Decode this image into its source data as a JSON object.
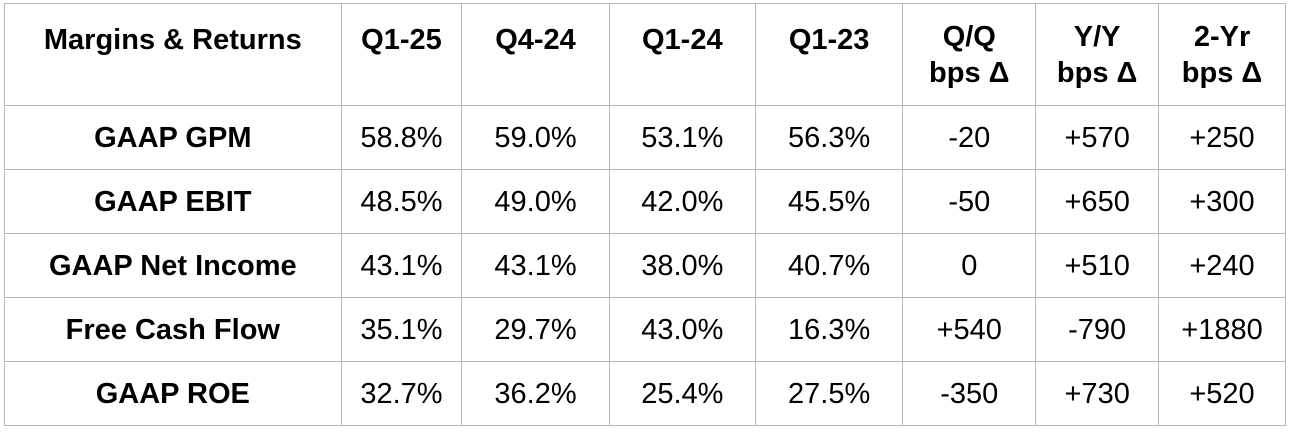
{
  "table": {
    "header": {
      "corner": "Margins & Returns",
      "periods": [
        "Q1-25",
        "Q4-24",
        "Q1-24",
        "Q1-23"
      ],
      "deltas": [
        {
          "line1": "Q/Q",
          "line2": "bps Δ"
        },
        {
          "line1": "Y/Y",
          "line2": "bps Δ"
        },
        {
          "line1": "2-Yr",
          "line2": "bps Δ"
        }
      ]
    },
    "rows": [
      {
        "label": "GAAP GPM",
        "values": [
          "58.8%",
          "59.0%",
          "53.1%",
          "56.3%",
          "-20",
          "+570",
          "+250"
        ]
      },
      {
        "label": "GAAP EBIT",
        "values": [
          "48.5%",
          "49.0%",
          "42.0%",
          "45.5%",
          "-50",
          "+650",
          "+300"
        ]
      },
      {
        "label": "GAAP Net Income",
        "values": [
          "43.1%",
          "43.1%",
          "38.0%",
          "40.7%",
          "0",
          "+510",
          "+240"
        ]
      },
      {
        "label": "Free Cash Flow",
        "values": [
          "35.1%",
          "29.7%",
          "43.0%",
          "16.3%",
          "+540",
          "-790",
          "+1880"
        ]
      },
      {
        "label": "GAAP ROE",
        "values": [
          "32.7%",
          "36.2%",
          "25.4%",
          "27.5%",
          "-350",
          "+730",
          "+520"
        ]
      }
    ]
  }
}
